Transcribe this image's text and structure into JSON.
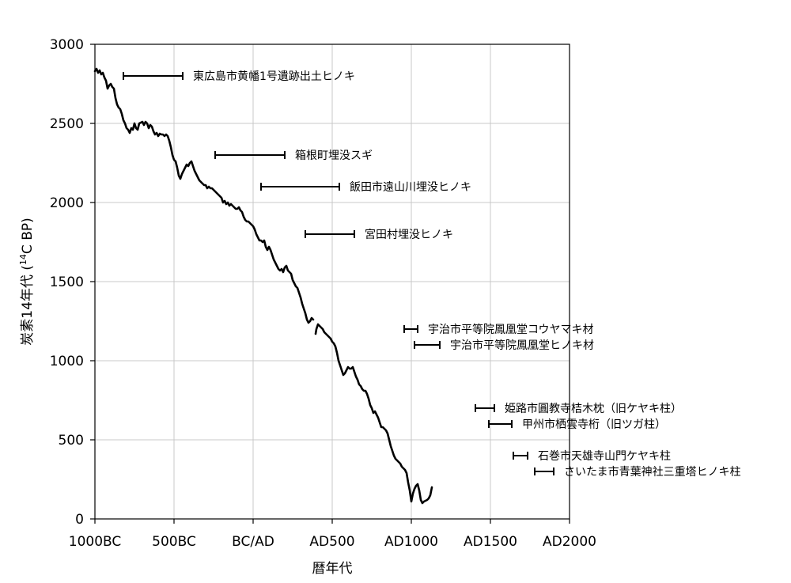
{
  "chart_data": {
    "type": "line",
    "title": "",
    "xlabel": "暦年代",
    "ylabel": "炭素14年代 (",
    "ylabel_super": "14",
    "ylabel_suffix": "C BP)",
    "xlim": [
      -1000,
      2000
    ],
    "ylim": [
      0,
      3000
    ],
    "grid": true,
    "x_ticks": [
      {
        "value": -1000,
        "label": "1000BC"
      },
      {
        "value": -500,
        "label": "500BC"
      },
      {
        "value": 0,
        "label": "BC/AD"
      },
      {
        "value": 500,
        "label": "AD500"
      },
      {
        "value": 1000,
        "label": "AD1000"
      },
      {
        "value": 1500,
        "label": "AD1500"
      },
      {
        "value": 2000,
        "label": "AD2000"
      }
    ],
    "y_ticks": [
      0,
      500,
      1000,
      1500,
      2000,
      2500,
      3000
    ],
    "series": [
      {
        "segments": [
          [
            [
              -1000,
              2830
            ],
            [
              -990,
              2845
            ],
            [
              -980,
              2820
            ],
            [
              -970,
              2835
            ],
            [
              -960,
              2810
            ],
            [
              -950,
              2820
            ],
            [
              -940,
              2790
            ],
            [
              -930,
              2770
            ],
            [
              -920,
              2720
            ],
            [
              -910,
              2740
            ],
            [
              -900,
              2750
            ],
            [
              -890,
              2730
            ],
            [
              -880,
              2720
            ],
            [
              -870,
              2660
            ],
            [
              -860,
              2620
            ],
            [
              -850,
              2600
            ],
            [
              -840,
              2590
            ],
            [
              -830,
              2560
            ],
            [
              -820,
              2520
            ],
            [
              -810,
              2500
            ],
            [
              -800,
              2470
            ],
            [
              -790,
              2460
            ],
            [
              -780,
              2440
            ],
            [
              -770,
              2470
            ],
            [
              -760,
              2460
            ],
            [
              -750,
              2500
            ],
            [
              -740,
              2470
            ],
            [
              -730,
              2460
            ],
            [
              -720,
              2500
            ],
            [
              -700,
              2510
            ],
            [
              -690,
              2490
            ],
            [
              -680,
              2510
            ],
            [
              -670,
              2500
            ],
            [
              -660,
              2470
            ],
            [
              -650,
              2490
            ],
            [
              -640,
              2480
            ],
            [
              -630,
              2450
            ],
            [
              -620,
              2430
            ],
            [
              -610,
              2440
            ],
            [
              -600,
              2420
            ],
            [
              -590,
              2435
            ],
            [
              -580,
              2430
            ],
            [
              -570,
              2430
            ],
            [
              -560,
              2420
            ],
            [
              -550,
              2430
            ],
            [
              -540,
              2420
            ],
            [
              -530,
              2390
            ],
            [
              -520,
              2350
            ],
            [
              -510,
              2300
            ],
            [
              -500,
              2270
            ],
            [
              -490,
              2260
            ],
            [
              -480,
              2220
            ],
            [
              -470,
              2170
            ],
            [
              -460,
              2150
            ],
            [
              -450,
              2180
            ],
            [
              -440,
              2200
            ],
            [
              -430,
              2220
            ],
            [
              -420,
              2240
            ],
            [
              -410,
              2230
            ],
            [
              -400,
              2250
            ],
            [
              -390,
              2260
            ],
            [
              -380,
              2230
            ],
            [
              -370,
              2200
            ],
            [
              -360,
              2180
            ],
            [
              -350,
              2160
            ],
            [
              -340,
              2140
            ],
            [
              -330,
              2130
            ],
            [
              -320,
              2120
            ],
            [
              -310,
              2110
            ],
            [
              -300,
              2110
            ],
            [
              -290,
              2090
            ],
            [
              -280,
              2100
            ],
            [
              -270,
              2090
            ],
            [
              -260,
              2090
            ],
            [
              -250,
              2080
            ],
            [
              -240,
              2070
            ],
            [
              -230,
              2060
            ],
            [
              -220,
              2050
            ],
            [
              -210,
              2040
            ],
            [
              -200,
              2030
            ],
            [
              -190,
              2000
            ],
            [
              -180,
              2010
            ],
            [
              -170,
              1990
            ],
            [
              -160,
              2000
            ],
            [
              -150,
              1980
            ],
            [
              -140,
              1990
            ],
            [
              -130,
              1980
            ],
            [
              -120,
              1970
            ],
            [
              -110,
              1960
            ],
            [
              -100,
              1960
            ],
            [
              -90,
              1970
            ],
            [
              -80,
              1950
            ],
            [
              -70,
              1940
            ],
            [
              -60,
              1910
            ],
            [
              -50,
              1890
            ],
            [
              -40,
              1880
            ],
            [
              -30,
              1880
            ],
            [
              -20,
              1870
            ],
            [
              -10,
              1860
            ],
            [
              0,
              1850
            ],
            [
              10,
              1830
            ],
            [
              20,
              1800
            ],
            [
              30,
              1780
            ],
            [
              40,
              1760
            ],
            [
              50,
              1760
            ],
            [
              60,
              1750
            ],
            [
              70,
              1760
            ],
            [
              80,
              1720
            ],
            [
              90,
              1700
            ],
            [
              100,
              1720
            ],
            [
              110,
              1700
            ],
            [
              120,
              1670
            ],
            [
              130,
              1640
            ],
            [
              140,
              1620
            ],
            [
              150,
              1600
            ],
            [
              160,
              1580
            ],
            [
              170,
              1570
            ],
            [
              180,
              1580
            ],
            [
              190,
              1560
            ],
            [
              200,
              1590
            ],
            [
              210,
              1600
            ],
            [
              220,
              1570
            ],
            [
              230,
              1560
            ],
            [
              240,
              1550
            ],
            [
              250,
              1510
            ],
            [
              260,
              1490
            ],
            [
              270,
              1470
            ],
            [
              280,
              1460
            ],
            [
              290,
              1430
            ],
            [
              300,
              1400
            ],
            [
              310,
              1360
            ],
            [
              320,
              1330
            ],
            [
              330,
              1300
            ],
            [
              340,
              1260
            ],
            [
              350,
              1240
            ],
            [
              360,
              1250
            ],
            [
              370,
              1270
            ],
            [
              380,
              1260
            ]
          ],
          [
            [
              395,
              1170
            ],
            [
              400,
              1200
            ],
            [
              410,
              1230
            ],
            [
              420,
              1220
            ],
            [
              430,
              1210
            ],
            [
              440,
              1200
            ],
            [
              450,
              1180
            ],
            [
              460,
              1170
            ],
            [
              470,
              1160
            ],
            [
              480,
              1150
            ],
            [
              490,
              1140
            ],
            [
              500,
              1120
            ],
            [
              510,
              1110
            ],
            [
              520,
              1090
            ],
            [
              530,
              1050
            ],
            [
              540,
              1000
            ],
            [
              550,
              970
            ],
            [
              560,
              940
            ],
            [
              570,
              910
            ],
            [
              580,
              920
            ],
            [
              590,
              940
            ],
            [
              600,
              960
            ],
            [
              610,
              950
            ],
            [
              620,
              950
            ],
            [
              630,
              960
            ],
            [
              640,
              930
            ],
            [
              650,
              900
            ],
            [
              660,
              880
            ],
            [
              670,
              850
            ],
            [
              680,
              840
            ],
            [
              690,
              820
            ],
            [
              700,
              810
            ],
            [
              710,
              810
            ],
            [
              720,
              790
            ],
            [
              730,
              760
            ],
            [
              740,
              720
            ],
            [
              750,
              700
            ],
            [
              760,
              670
            ],
            [
              770,
              680
            ],
            [
              780,
              660
            ],
            [
              790,
              640
            ],
            [
              800,
              610
            ],
            [
              810,
              580
            ],
            [
              820,
              580
            ],
            [
              830,
              570
            ],
            [
              840,
              560
            ],
            [
              850,
              540
            ],
            [
              860,
              500
            ],
            [
              870,
              460
            ],
            [
              880,
              430
            ],
            [
              890,
              400
            ],
            [
              900,
              380
            ],
            [
              910,
              370
            ],
            [
              920,
              360
            ],
            [
              930,
              350
            ],
            [
              940,
              330
            ],
            [
              950,
              320
            ],
            [
              960,
              310
            ],
            [
              970,
              290
            ],
            [
              980,
              230
            ],
            [
              990,
              180
            ],
            [
              1000,
              110
            ],
            [
              1010,
              160
            ],
            [
              1020,
              190
            ],
            [
              1030,
              210
            ],
            [
              1040,
              220
            ],
            [
              1050,
              180
            ],
            [
              1060,
              120
            ],
            [
              1070,
              100
            ],
            [
              1080,
              110
            ],
            [
              1090,
              115
            ],
            [
              1100,
              120
            ],
            [
              1110,
              130
            ],
            [
              1120,
              150
            ],
            [
              1130,
              200
            ]
          ]
        ]
      }
    ],
    "annotations": [
      {
        "label": "東広島市黄幡1号遺跡出土ヒノキ",
        "x_start": -820,
        "x_end": -445,
        "y": 2800
      },
      {
        "label": "箱根町埋没スギ",
        "x_start": -240,
        "x_end": 200,
        "y": 2300
      },
      {
        "label": "飯田市遠山川埋没ヒノキ",
        "x_start": 50,
        "x_end": 545,
        "y": 2100
      },
      {
        "label": "宮田村埋没ヒノキ",
        "x_start": 330,
        "x_end": 640,
        "y": 1800
      },
      {
        "label": "宇治市平等院鳳凰堂コウヤマキ材",
        "x_start": 955,
        "x_end": 1040,
        "y": 1200
      },
      {
        "label": "宇治市平等院鳳凰堂ヒノキ材",
        "x_start": 1020,
        "x_end": 1180,
        "y": 1100
      },
      {
        "label": "姫路市圓教寺桔木枕（旧ケヤキ柱）",
        "x_start": 1405,
        "x_end": 1525,
        "y": 700
      },
      {
        "label": "甲州市栖雲寺桁（旧ツガ柱）",
        "x_start": 1490,
        "x_end": 1635,
        "y": 600
      },
      {
        "label": "石巻市天雄寺山門ケヤキ柱",
        "x_start": 1645,
        "x_end": 1735,
        "y": 400
      },
      {
        "label": "さいたま市青葉神社三重塔ヒノキ柱",
        "x_start": 1780,
        "x_end": 1900,
        "y": 300
      }
    ]
  }
}
